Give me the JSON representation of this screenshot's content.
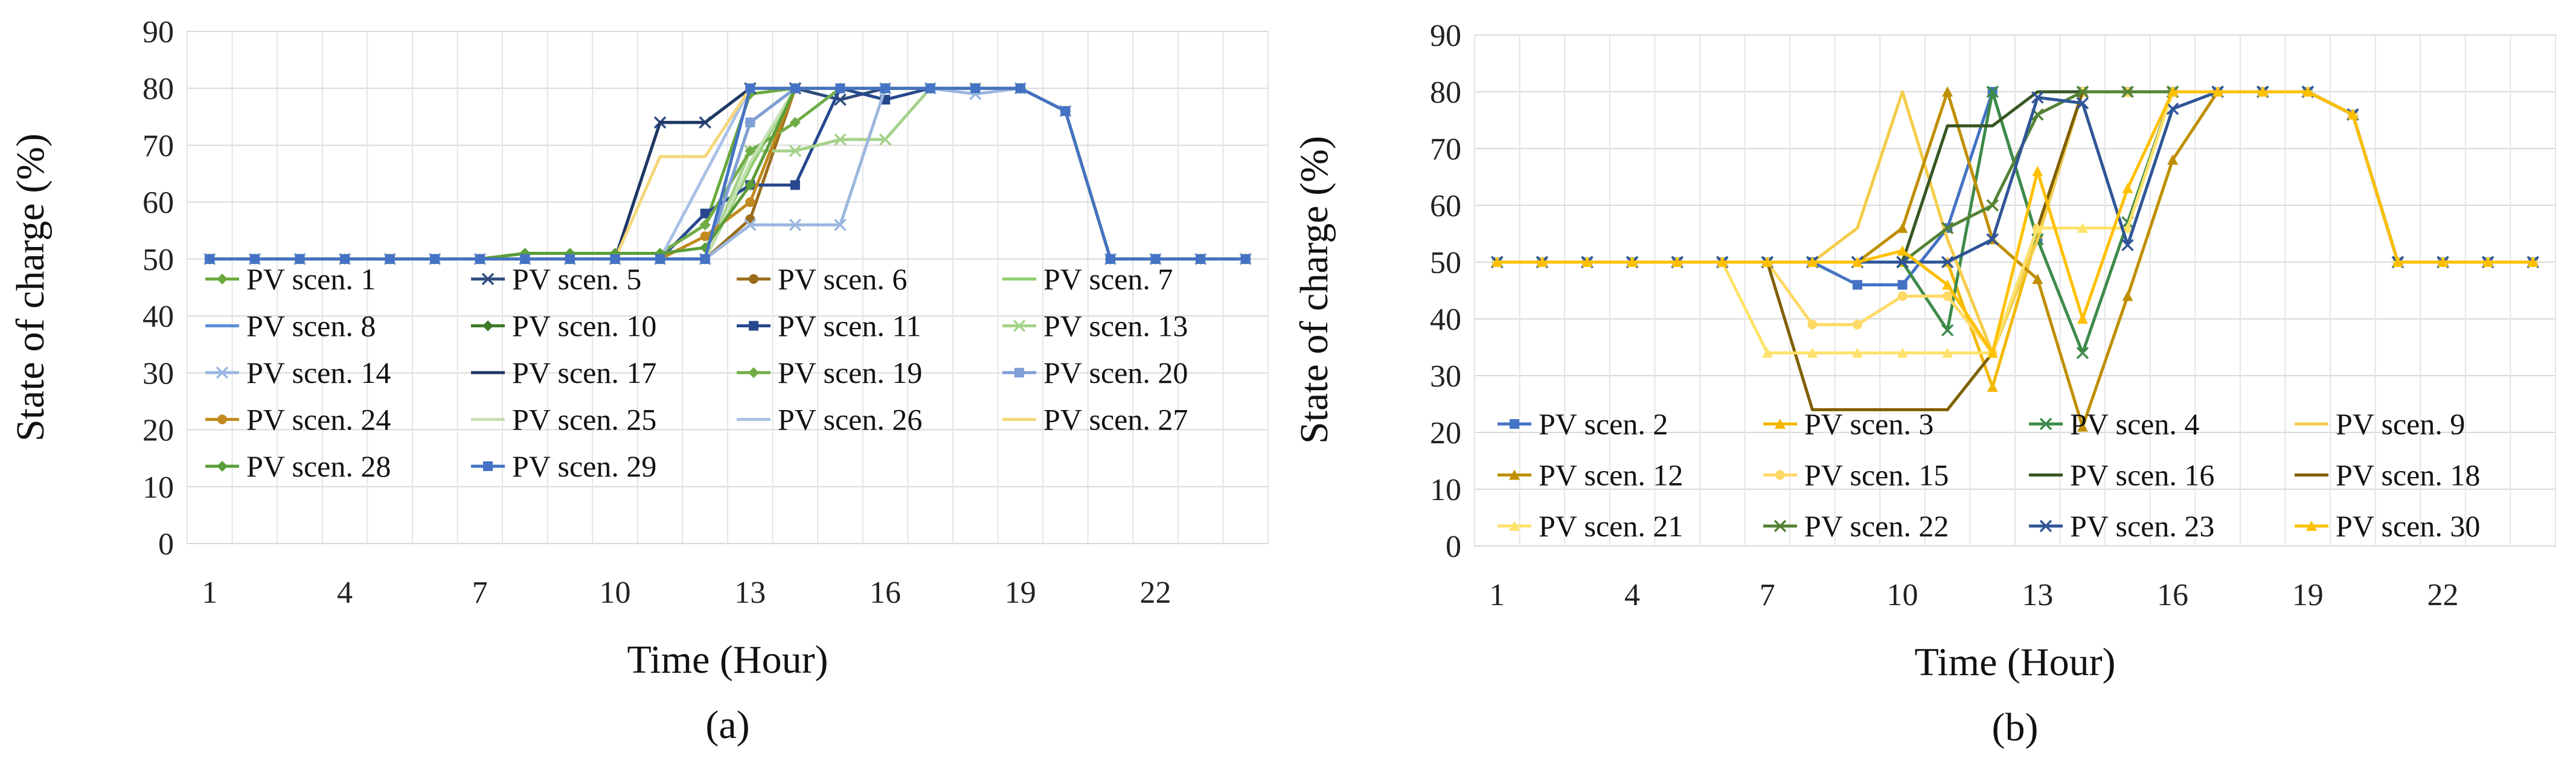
{
  "chart_data": [
    {
      "type": "line",
      "panel_label": "(a)",
      "xlabel": "Time (Hour)",
      "ylabel": "State of charge (%)",
      "x": [
        1,
        2,
        3,
        4,
        5,
        6,
        7,
        8,
        9,
        10,
        11,
        12,
        13,
        14,
        15,
        16,
        17,
        18,
        19,
        20,
        21,
        22,
        23,
        24
      ],
      "x_tick_labels": [
        "1",
        "4",
        "7",
        "10",
        "13",
        "16",
        "19",
        "22"
      ],
      "x_tick_values": [
        1,
        4,
        7,
        10,
        13,
        16,
        19,
        22
      ],
      "ylim": [
        0,
        90
      ],
      "y_ticks": [
        "0",
        "10",
        "20",
        "30",
        "40",
        "50",
        "60",
        "70",
        "80",
        "90"
      ],
      "grid": true,
      "legend_columns": 4,
      "series": [
        {
          "name": "PV scen. 1",
          "color": "#6aaa3c",
          "marker": "diamond",
          "values": [
            50,
            50,
            50,
            50,
            50,
            50,
            50,
            51,
            51,
            51,
            51,
            56,
            79,
            80,
            80,
            80,
            80,
            80,
            80,
            76,
            50,
            50,
            50,
            50
          ]
        },
        {
          "name": "PV scen. 5",
          "color": "#2e4c7e",
          "marker": "x",
          "values": [
            50,
            50,
            50,
            50,
            50,
            50,
            50,
            50,
            50,
            50,
            74,
            74,
            80,
            80,
            78,
            80,
            80,
            80,
            80,
            76,
            50,
            50,
            50,
            50
          ]
        },
        {
          "name": "PV scen. 6",
          "color": "#9a6d1b",
          "marker": "circle",
          "values": [
            50,
            50,
            50,
            50,
            50,
            50,
            50,
            50,
            50,
            50,
            50,
            50,
            57,
            80,
            80,
            80,
            80,
            80,
            80,
            76,
            50,
            50,
            50,
            50
          ]
        },
        {
          "name": "PV scen. 7",
          "color": "#8fcf6e",
          "marker": "none",
          "values": [
            50,
            50,
            50,
            50,
            50,
            50,
            50,
            50,
            50,
            50,
            50,
            50,
            66,
            80,
            80,
            80,
            80,
            80,
            80,
            76,
            50,
            50,
            50,
            50
          ]
        },
        {
          "name": "PV scen. 8",
          "color": "#5b8fd6",
          "marker": "none",
          "values": [
            50,
            50,
            50,
            50,
            50,
            50,
            50,
            50,
            50,
            50,
            50,
            50,
            80,
            80,
            80,
            80,
            80,
            80,
            80,
            76,
            50,
            50,
            50,
            50
          ]
        },
        {
          "name": "PV scen. 10",
          "color": "#3e7a2a",
          "marker": "diamond",
          "values": [
            50,
            50,
            50,
            50,
            50,
            50,
            50,
            50,
            50,
            50,
            50,
            50,
            74,
            80,
            80,
            80,
            80,
            80,
            80,
            76,
            50,
            50,
            50,
            50
          ]
        },
        {
          "name": "PV scen. 11",
          "color": "#27488f",
          "marker": "square",
          "values": [
            50,
            50,
            50,
            50,
            50,
            50,
            50,
            50,
            50,
            50,
            50,
            58,
            63,
            63,
            80,
            78,
            80,
            80,
            80,
            76,
            50,
            50,
            50,
            50
          ]
        },
        {
          "name": "PV scen. 13",
          "color": "#a5d28a",
          "marker": "x",
          "values": [
            50,
            50,
            50,
            50,
            50,
            50,
            50,
            50,
            50,
            50,
            50,
            50,
            69,
            69,
            71,
            71,
            80,
            80,
            80,
            76,
            50,
            50,
            50,
            50
          ]
        },
        {
          "name": "PV scen. 14",
          "color": "#9bb7e0",
          "marker": "x",
          "values": [
            50,
            50,
            50,
            50,
            50,
            50,
            50,
            50,
            50,
            50,
            50,
            50,
            56,
            56,
            56,
            80,
            80,
            79,
            80,
            76,
            50,
            50,
            50,
            50
          ]
        },
        {
          "name": "PV scen. 17",
          "color": "#1f3864",
          "marker": "none",
          "values": [
            50,
            50,
            50,
            50,
            50,
            50,
            50,
            50,
            50,
            50,
            74,
            74,
            80,
            80,
            80,
            80,
            80,
            80,
            80,
            76,
            50,
            50,
            50,
            50
          ]
        },
        {
          "name": "PV scen. 19",
          "color": "#70ad47",
          "marker": "diamond",
          "values": [
            50,
            50,
            50,
            50,
            50,
            50,
            50,
            51,
            51,
            51,
            51,
            56,
            69,
            74,
            80,
            80,
            80,
            80,
            80,
            76,
            50,
            50,
            50,
            50
          ]
        },
        {
          "name": "PV scen. 20",
          "color": "#7f9fd6",
          "marker": "square",
          "values": [
            50,
            50,
            50,
            50,
            50,
            50,
            50,
            50,
            50,
            50,
            50,
            50,
            74,
            80,
            80,
            80,
            80,
            80,
            80,
            76,
            50,
            50,
            50,
            50
          ]
        },
        {
          "name": "PV scen. 24",
          "color": "#c08a1e",
          "marker": "circle",
          "values": [
            50,
            50,
            50,
            50,
            50,
            50,
            50,
            50,
            50,
            50,
            50,
            54,
            60,
            80,
            80,
            80,
            80,
            80,
            80,
            76,
            50,
            50,
            50,
            50
          ]
        },
        {
          "name": "PV scen. 25",
          "color": "#c6e0b4",
          "marker": "none",
          "values": [
            50,
            50,
            50,
            50,
            50,
            50,
            50,
            50,
            50,
            50,
            50,
            50,
            67,
            80,
            80,
            80,
            80,
            80,
            80,
            76,
            50,
            50,
            50,
            50
          ]
        },
        {
          "name": "PV scen. 26",
          "color": "#a9c0e6",
          "marker": "none",
          "values": [
            50,
            50,
            50,
            50,
            50,
            50,
            50,
            50,
            50,
            50,
            50,
            65,
            80,
            80,
            80,
            80,
            80,
            80,
            80,
            76,
            50,
            50,
            50,
            50
          ]
        },
        {
          "name": "PV scen. 27",
          "color": "#f5d77a",
          "marker": "none",
          "values": [
            50,
            50,
            50,
            50,
            50,
            50,
            50,
            50,
            50,
            50,
            68,
            68,
            80,
            80,
            80,
            80,
            80,
            80,
            80,
            76,
            50,
            50,
            50,
            50
          ]
        },
        {
          "name": "PV scen. 28",
          "color": "#5a9e3a",
          "marker": "diamond",
          "values": [
            50,
            50,
            50,
            50,
            50,
            50,
            50,
            51,
            51,
            51,
            51,
            52,
            63,
            80,
            80,
            80,
            80,
            80,
            80,
            76,
            50,
            50,
            50,
            50
          ]
        },
        {
          "name": "PV scen. 29",
          "color": "#4472c4",
          "marker": "square",
          "values": [
            50,
            50,
            50,
            50,
            50,
            50,
            50,
            50,
            50,
            50,
            50,
            50,
            80,
            80,
            80,
            80,
            80,
            80,
            80,
            76,
            50,
            50,
            50,
            50
          ]
        }
      ]
    },
    {
      "type": "line",
      "panel_label": "(b)",
      "xlabel": "Time (Hour)",
      "ylabel": "State of charge (%)",
      "x": [
        1,
        2,
        3,
        4,
        5,
        6,
        7,
        8,
        9,
        10,
        11,
        12,
        13,
        14,
        15,
        16,
        17,
        18,
        19,
        20,
        21,
        22,
        23,
        24
      ],
      "x_tick_labels": [
        "1",
        "4",
        "7",
        "10",
        "13",
        "16",
        "19",
        "22"
      ],
      "x_tick_values": [
        1,
        4,
        7,
        10,
        13,
        16,
        19,
        22
      ],
      "ylim": [
        0,
        90
      ],
      "y_ticks": [
        "0",
        "10",
        "20",
        "30",
        "40",
        "50",
        "60",
        "70",
        "80",
        "90"
      ],
      "grid": true,
      "legend_columns": 4,
      "series": [
        {
          "name": "PV scen. 2",
          "color": "#4472c4",
          "marker": "square",
          "values": [
            50,
            50,
            50,
            50,
            50,
            50,
            50,
            50,
            46,
            46,
            56,
            80,
            54,
            80,
            80,
            80,
            80,
            80,
            80,
            76,
            50,
            50,
            50,
            50
          ]
        },
        {
          "name": "PV scen. 3",
          "color": "#f2b800",
          "marker": "triangle",
          "values": [
            50,
            50,
            50,
            50,
            50,
            50,
            50,
            50,
            50,
            50,
            50,
            28,
            55,
            80,
            80,
            80,
            80,
            80,
            80,
            76,
            50,
            50,
            50,
            50
          ]
        },
        {
          "name": "PV scen. 4",
          "color": "#3d8b4a",
          "marker": "x",
          "values": [
            50,
            50,
            50,
            50,
            50,
            50,
            50,
            50,
            50,
            50,
            38,
            80,
            54,
            34,
            57,
            80,
            80,
            80,
            80,
            76,
            50,
            50,
            50,
            50
          ]
        },
        {
          "name": "PV scen. 9",
          "color": "#f5cc4a",
          "marker": "none",
          "values": [
            50,
            50,
            50,
            50,
            50,
            50,
            50,
            50,
            56,
            80,
            54,
            34,
            54,
            80,
            80,
            80,
            80,
            80,
            80,
            76,
            50,
            50,
            50,
            50
          ]
        },
        {
          "name": "PV scen. 12",
          "color": "#bf8f00",
          "marker": "triangle",
          "values": [
            50,
            50,
            50,
            50,
            50,
            50,
            50,
            50,
            50,
            56,
            80,
            54,
            47,
            21,
            44,
            68,
            80,
            80,
            80,
            76,
            50,
            50,
            50,
            50
          ]
        },
        {
          "name": "PV scen. 15",
          "color": "#ffd966",
          "marker": "circle",
          "values": [
            50,
            50,
            50,
            50,
            50,
            50,
            50,
            39,
            39,
            44,
            44,
            34,
            56,
            80,
            80,
            80,
            80,
            80,
            80,
            76,
            50,
            50,
            50,
            50
          ]
        },
        {
          "name": "PV scen. 16",
          "color": "#375623",
          "marker": "none",
          "values": [
            50,
            50,
            50,
            50,
            50,
            50,
            50,
            50,
            50,
            50,
            74,
            74,
            80,
            80,
            80,
            80,
            80,
            80,
            80,
            76,
            50,
            50,
            50,
            50
          ]
        },
        {
          "name": "PV scen. 18",
          "color": "#7f5f00",
          "marker": "none",
          "values": [
            50,
            50,
            50,
            50,
            50,
            50,
            50,
            24,
            24,
            24,
            24,
            34,
            56,
            80,
            80,
            80,
            80,
            80,
            80,
            76,
            50,
            50,
            50,
            50
          ]
        },
        {
          "name": "PV scen. 21",
          "color": "#ffe26b",
          "marker": "triangle",
          "values": [
            50,
            50,
            50,
            50,
            50,
            50,
            34,
            34,
            34,
            34,
            34,
            34,
            56,
            56,
            56,
            80,
            80,
            80,
            80,
            76,
            50,
            50,
            50,
            50
          ]
        },
        {
          "name": "PV scen. 22",
          "color": "#548235",
          "marker": "x",
          "values": [
            50,
            50,
            50,
            50,
            50,
            50,
            50,
            50,
            50,
            50,
            56,
            60,
            76,
            80,
            80,
            80,
            80,
            80,
            80,
            76,
            50,
            50,
            50,
            50
          ]
        },
        {
          "name": "PV scen. 23",
          "color": "#2f5597",
          "marker": "x",
          "values": [
            50,
            50,
            50,
            50,
            50,
            50,
            50,
            50,
            50,
            50,
            50,
            54,
            79,
            78,
            53,
            77,
            80,
            80,
            80,
            76,
            50,
            50,
            50,
            50
          ]
        },
        {
          "name": "PV scen. 30",
          "color": "#ffc000",
          "marker": "triangle",
          "values": [
            50,
            50,
            50,
            50,
            50,
            50,
            50,
            50,
            50,
            52,
            46,
            34,
            66,
            40,
            63,
            80,
            80,
            80,
            80,
            76,
            50,
            50,
            50,
            50
          ]
        }
      ]
    }
  ]
}
